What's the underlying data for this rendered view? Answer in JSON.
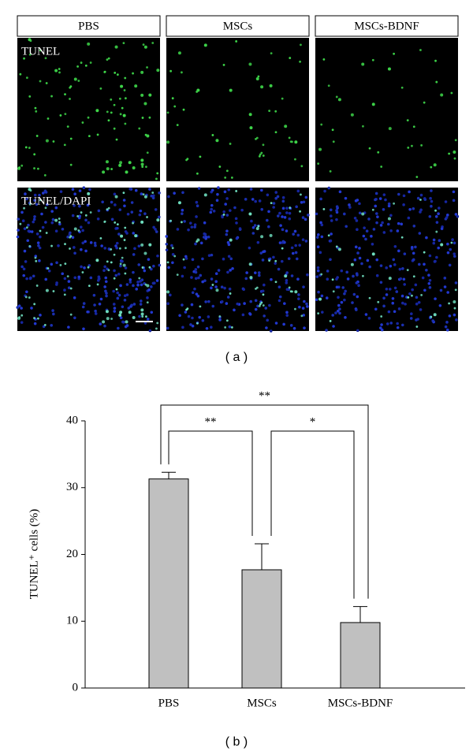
{
  "figure": {
    "columns": [
      "PBS",
      "MSCs",
      "MSCs-BDNF"
    ],
    "rows": [
      "TUNEL",
      "TUNEL/DAPI"
    ],
    "caption_a": "( a )",
    "caption_b": "( b )"
  },
  "chart_data": {
    "type": "bar",
    "ylabel": "TUNEL⁺ cells (%)",
    "categories": [
      "PBS",
      "MSCs",
      "MSCs-BDNF"
    ],
    "values": [
      31.3,
      17.7,
      9.8
    ],
    "errors": [
      1.0,
      3.9,
      2.4
    ],
    "color": "#c0c0c0",
    "ylim": [
      0,
      40
    ],
    "yticks": [
      0,
      10,
      20,
      30,
      40
    ],
    "annotations": [
      {
        "text": "**"
      },
      {
        "text": "*"
      },
      {
        "text": "**"
      }
    ]
  }
}
